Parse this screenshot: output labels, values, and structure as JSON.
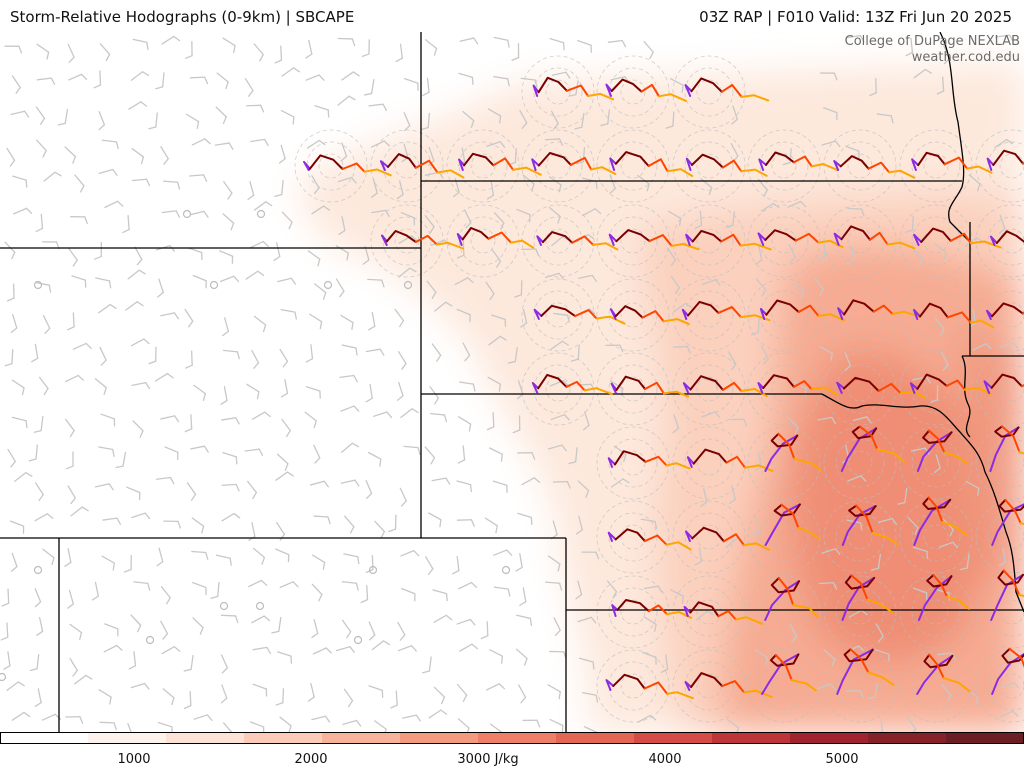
{
  "header": {
    "left_title": "Storm-Relative Hodographs (0-9km) | SBCAPE",
    "right_title": "03Z RAP | F010 Valid: 13Z Fri Jun 20 2025"
  },
  "credits": {
    "line1": "College of DuPage NEXLAB",
    "line2": "weather.cod.edu"
  },
  "colorbar": {
    "ticks": [
      "1000",
      "2000",
      "3000 J/kg",
      "4000",
      "5000"
    ],
    "colors": [
      "#fef3ec",
      "#fde3d6",
      "#fbcdb9",
      "#f8b39b",
      "#f49a80",
      "#ee8069",
      "#e46655",
      "#d44c45",
      "#bd3539",
      "#a02430",
      "#862029",
      "#6b1f25"
    ]
  },
  "legend_colors": {
    "hodo_0_1km": "#8b2be2",
    "hodo_1_3km": "#7a0000",
    "hodo_3_6km": "#ff4500",
    "hodo_6_9km": "#ffa500",
    "borders": "#000000",
    "barbs": "#c8c8c8"
  }
}
